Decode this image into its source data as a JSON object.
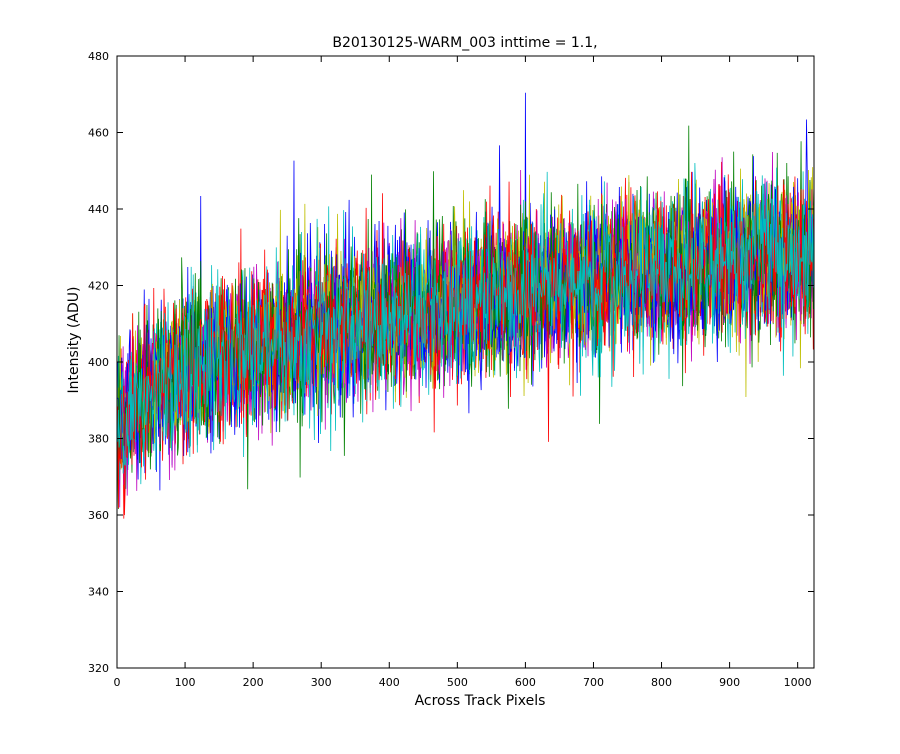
{
  "chart_data": {
    "type": "line",
    "title": "B20130125-WARM_003 inttime = 1.1,",
    "xlabel": "Across Track Pixels",
    "ylabel": "Intensity (ADU)",
    "xlim": [
      0,
      1024
    ],
    "ylim": [
      320,
      480
    ],
    "xticks": [
      0,
      100,
      200,
      300,
      400,
      500,
      600,
      700,
      800,
      900,
      1000
    ],
    "yticks": [
      320,
      340,
      360,
      380,
      400,
      420,
      440,
      460,
      480
    ],
    "grid": false,
    "legend": "none",
    "x_range": [
      1,
      1024
    ],
    "trend": {
      "description": "noisy rows rising from ~385 ADU at pixel 0 to ~428 ADU at pixel 1024",
      "x": [
        0,
        50,
        100,
        200,
        300,
        400,
        500,
        600,
        700,
        800,
        900,
        1024
      ],
      "y": [
        384,
        393,
        397,
        403,
        408,
        412,
        415,
        419,
        421,
        424,
        426,
        428
      ]
    },
    "noise_std_adu": 9,
    "series": [
      {
        "color": "#0000ff"
      },
      {
        "color": "#008000"
      },
      {
        "color": "#ff0000"
      },
      {
        "color": "#00bfbf"
      },
      {
        "color": "#bf00bf"
      },
      {
        "color": "#bfbf00"
      },
      {
        "color": "#0000ff"
      },
      {
        "color": "#008000"
      },
      {
        "color": "#ff0000"
      },
      {
        "color": "#00bfbf"
      },
      {
        "color": "#bf00bf"
      },
      {
        "color": "#bfbf00"
      },
      {
        "color": "#0000ff"
      },
      {
        "color": "#008000"
      },
      {
        "color": "#ff0000"
      },
      {
        "color": "#00bfbf"
      }
    ]
  }
}
